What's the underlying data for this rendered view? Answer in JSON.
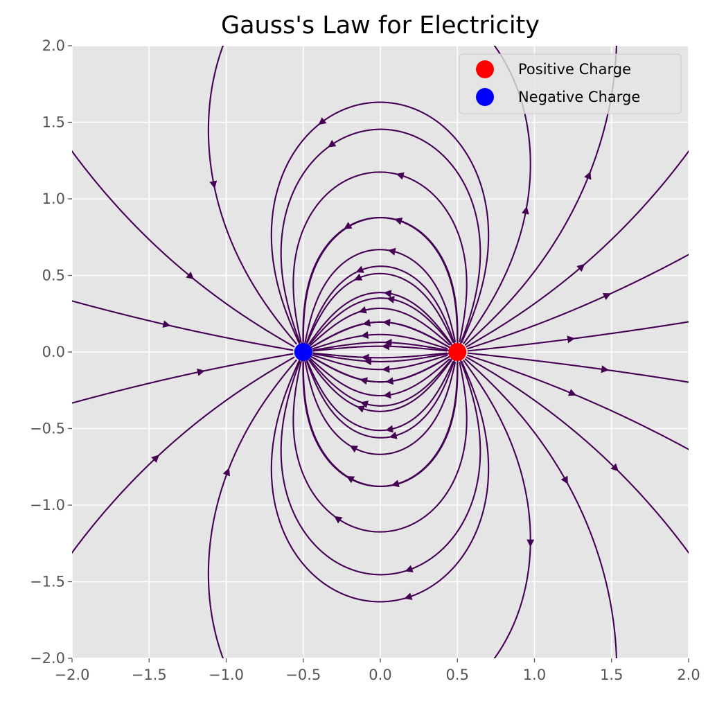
{
  "chart_data": {
    "type": "streamplot",
    "title": "Gauss's Law for Electricity",
    "xlabel": "",
    "ylabel": "",
    "xlim": [
      -2.0,
      2.0
    ],
    "ylim": [
      -2.0,
      2.0
    ],
    "xticks": [
      "−2.0",
      "−1.5",
      "−1.0",
      "−0.5",
      "0.0",
      "0.5",
      "1.0",
      "1.5",
      "2.0"
    ],
    "yticks": [
      "−2.0",
      "−1.5",
      "−1.0",
      "−0.5",
      "0.0",
      "0.5",
      "1.0",
      "1.5",
      "2.0"
    ],
    "grid": true,
    "background": "#e5e5e5",
    "stream_color": "#440154",
    "legend_placement": "top-right",
    "field": "electric field of a point-charge dipole",
    "charges": [
      {
        "name": "Positive Charge",
        "x": 0.5,
        "y": 0.0,
        "sign": 1,
        "color": "#ff0000"
      },
      {
        "name": "Negative Charge",
        "x": -0.5,
        "y": 0.0,
        "sign": -1,
        "color": "#0000ff"
      }
    ]
  }
}
